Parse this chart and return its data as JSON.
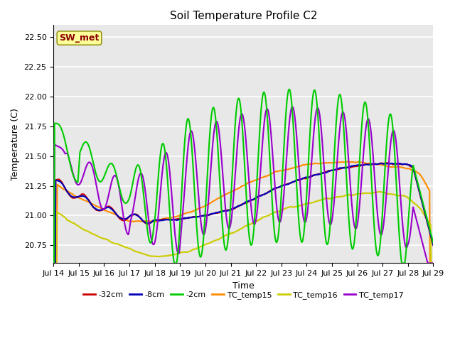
{
  "title": "Soil Temperature Profile C2",
  "xlabel": "Time",
  "ylabel": "Temperature (C)",
  "ylim": [
    20.6,
    22.6
  ],
  "xlim": [
    0,
    15
  ],
  "annotation_text": "SW_met",
  "annotation_color": "#8B0000",
  "annotation_bg": "#FFFF99",
  "bg_color": "#E8E8E8",
  "grid_color": "white",
  "series": {
    "neg32cm": {
      "color": "#CC0000",
      "label": "-32cm",
      "lw": 1.5
    },
    "neg8cm": {
      "color": "#0000BB",
      "label": "-8cm",
      "lw": 1.5
    },
    "neg2cm": {
      "color": "#00CC00",
      "label": "-2cm",
      "lw": 1.5
    },
    "tc15": {
      "color": "#FF8C00",
      "label": "TC_temp15",
      "lw": 1.5
    },
    "tc16": {
      "color": "#CCCC00",
      "label": "TC_temp16",
      "lw": 1.5
    },
    "tc17": {
      "color": "#9900CC",
      "label": "TC_temp17",
      "lw": 1.5
    }
  },
  "xtick_labels": [
    "Jul 14",
    "Jul 15",
    "Jul 16",
    "Jul 17",
    "Jul 18",
    "Jul 19",
    "Jul 20",
    "Jul 21",
    "Jul 22",
    "Jul 23",
    "Jul 24",
    "Jul 25",
    "Jul 26",
    "Jul 27",
    "Jul 28",
    "Jul 29"
  ],
  "xtick_positions": [
    0,
    1,
    2,
    3,
    4,
    5,
    6,
    7,
    8,
    9,
    10,
    11,
    12,
    13,
    14,
    15
  ]
}
